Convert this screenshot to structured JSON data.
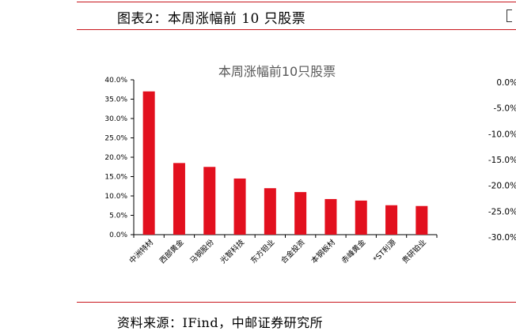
{
  "figure_title": "图表2：本周涨幅前 10 只股票",
  "source_note": "资料来源：IFind，中邮证券研究所",
  "chart_data": [
    {
      "type": "bar",
      "title": "本周涨幅前10只股票",
      "categories": [
        "中洲特材",
        "西部黄金",
        "马钢股份",
        "光智科技",
        "东方钽业",
        "合金投资",
        "本钢板材",
        "赤峰黄金",
        "*ST利源",
        "贵研铂业"
      ],
      "values": [
        37.0,
        18.5,
        17.5,
        14.5,
        12.0,
        11.0,
        9.2,
        8.8,
        7.6,
        7.4
      ],
      "ylim": [
        0,
        40
      ],
      "yticks": [
        "0.0%",
        "5.0%",
        "10.0%",
        "15.0%",
        "20.0%",
        "25.0%",
        "30.0%",
        "35.0%",
        "40.0%"
      ],
      "xlabel": "",
      "ylabel": "",
      "grid": false,
      "color": "#e2101e"
    },
    {
      "type": "bar",
      "partially_visible": true,
      "yticks": [
        "0.0%",
        "-5.0%",
        "-10.0%",
        "-15.0%",
        "-20.0%",
        "-25.0%",
        "-30.0%"
      ],
      "ylim": [
        -30,
        0
      ]
    }
  ]
}
